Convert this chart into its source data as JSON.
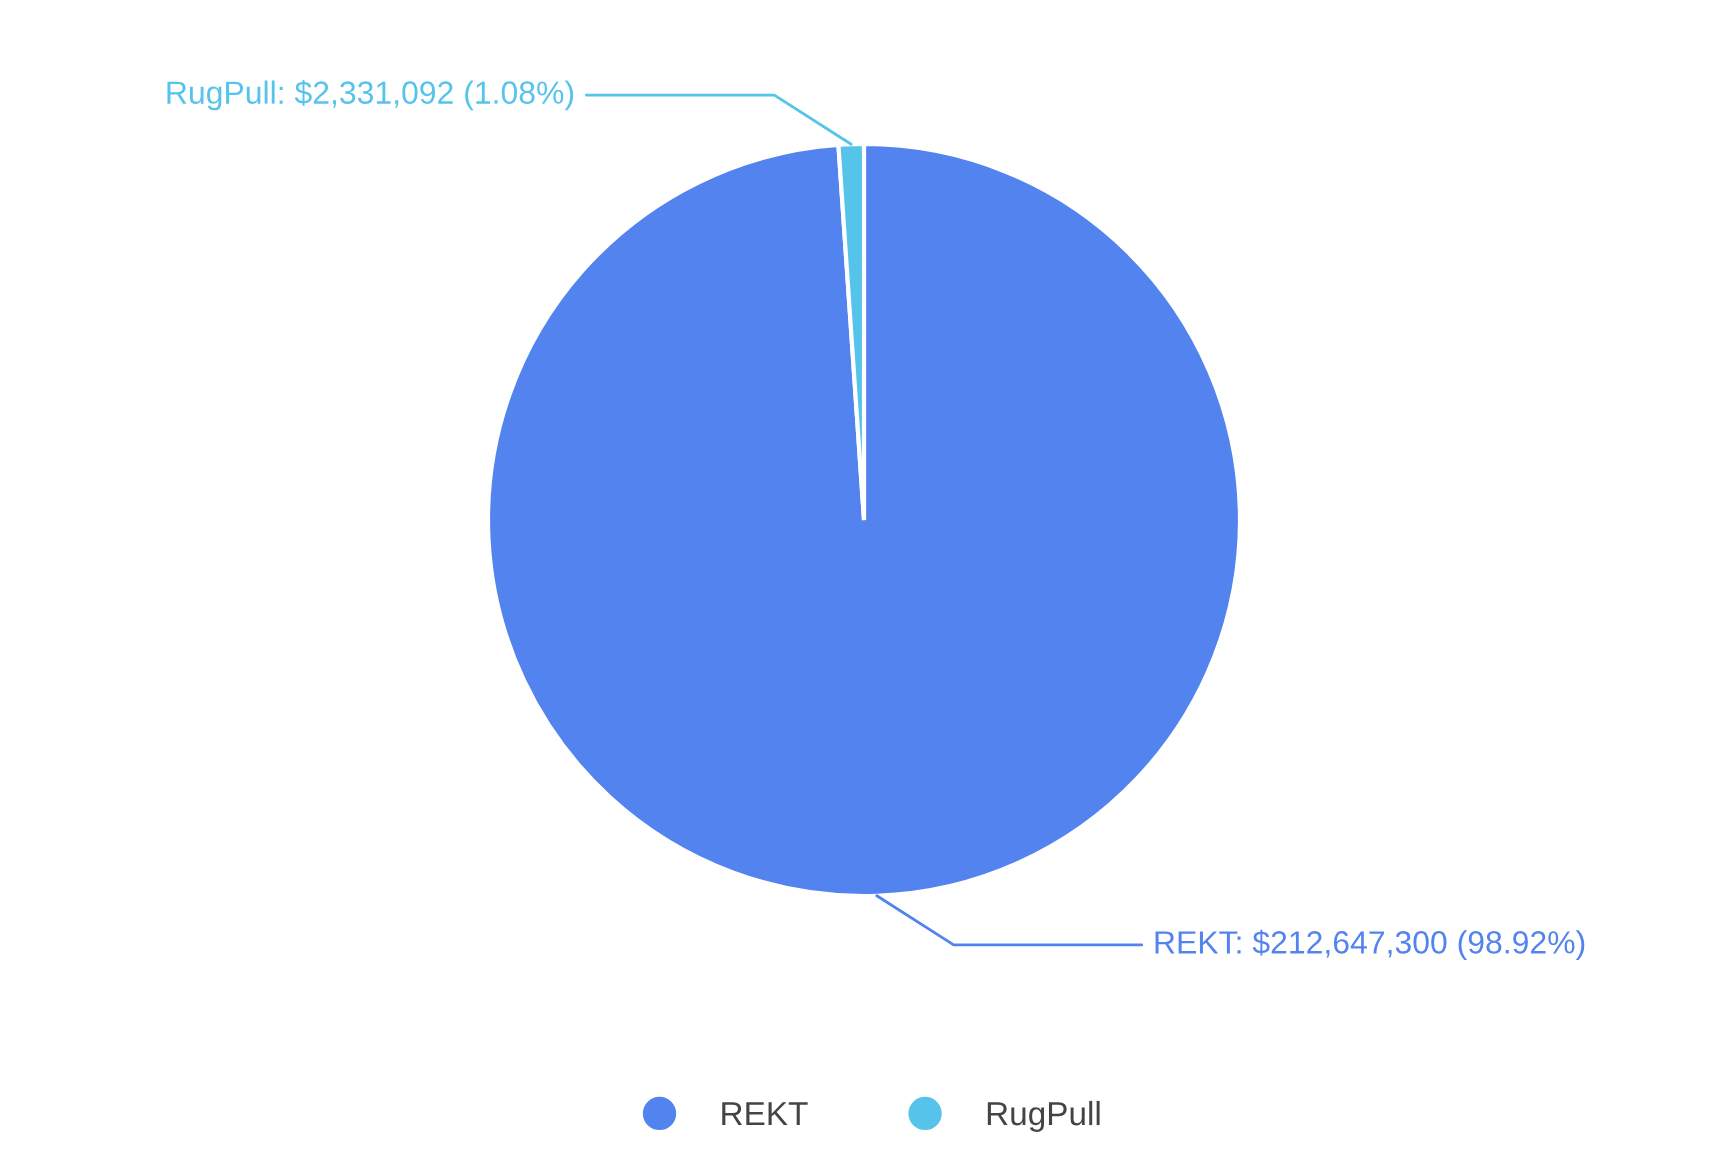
{
  "chart_data": {
    "type": "pie",
    "categories": [
      "REKT",
      "RugPull"
    ],
    "values": [
      212647300,
      2331092
    ],
    "colors": [
      "#5283ee",
      "#56c4ea"
    ],
    "value_labels": [
      "REKT: $212,647,300 (98.92%)",
      "RugPull: $2,331,092 (1.08%)"
    ],
    "legend": "bottom"
  }
}
